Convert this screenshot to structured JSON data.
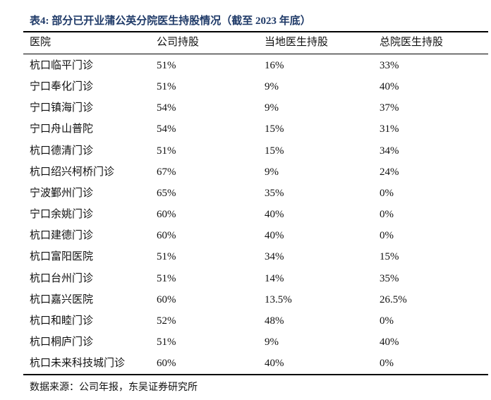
{
  "title": "表4:  部分已开业蒲公英分院医生持股情况（截至 2023 年底）",
  "table": {
    "headers": [
      "医院",
      "公司持股",
      "当地医生持股",
      "总院医生持股"
    ],
    "rows": [
      [
        "杭口临平门诊",
        "51%",
        "16%",
        "33%"
      ],
      [
        "宁口奉化门诊",
        "51%",
        "9%",
        "40%"
      ],
      [
        "宁口镇海门诊",
        "54%",
        "9%",
        "37%"
      ],
      [
        "宁口舟山普陀",
        "54%",
        "15%",
        "31%"
      ],
      [
        "杭口德清门诊",
        "51%",
        "15%",
        "34%"
      ],
      [
        "杭口绍兴柯桥门诊",
        "67%",
        "9%",
        "24%"
      ],
      [
        "宁波鄞州门诊",
        "65%",
        "35%",
        "0%"
      ],
      [
        "宁口余姚门诊",
        "60%",
        "40%",
        "0%"
      ],
      [
        "杭口建德门诊",
        "60%",
        "40%",
        "0%"
      ],
      [
        "杭口富阳医院",
        "51%",
        "34%",
        "15%"
      ],
      [
        "杭口台州门诊",
        "51%",
        "14%",
        "35%"
      ],
      [
        "杭口嘉兴医院",
        "60%",
        "13.5%",
        "26.5%"
      ],
      [
        "杭口和睦门诊",
        "52%",
        "48%",
        "0%"
      ],
      [
        "杭口桐庐门诊",
        "51%",
        "9%",
        "40%"
      ],
      [
        "杭口未来科技城门诊",
        "60%",
        "40%",
        "0%"
      ]
    ]
  },
  "source": "数据来源：公司年报，东吴证券研究所"
}
